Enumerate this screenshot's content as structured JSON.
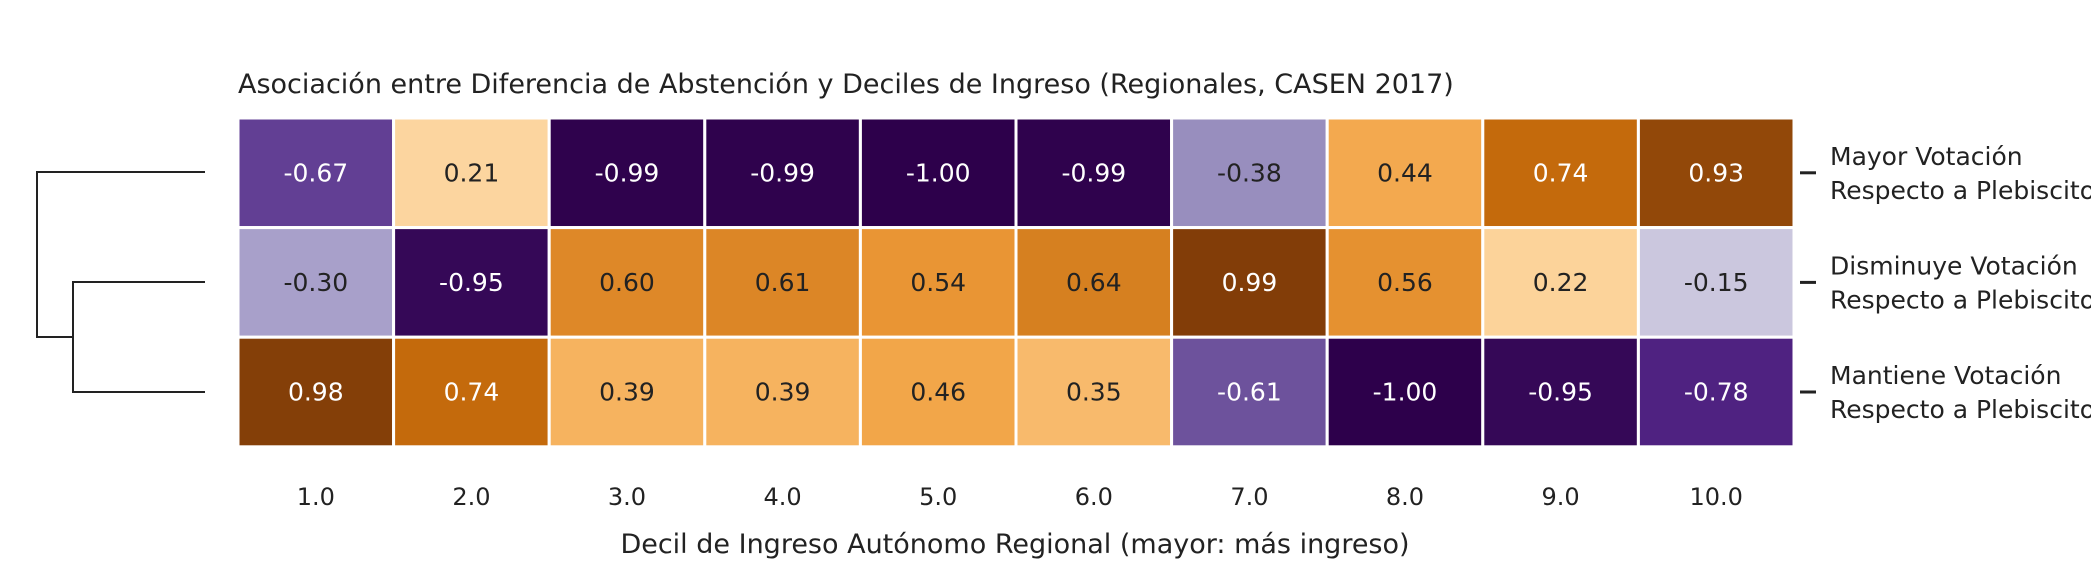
{
  "chart_data": {
    "type": "heatmap",
    "title": "Asociación entre Diferencia de Abstención y Deciles de Ingreso (Regionales, CASEN 2017)",
    "xlabel": "Decil de Ingreso Autónomo Regional (mayor: más ingreso)",
    "ylabel": "",
    "categories": [
      "1.0",
      "2.0",
      "3.0",
      "4.0",
      "5.0",
      "6.0",
      "7.0",
      "8.0",
      "9.0",
      "10.0"
    ],
    "rows": [
      {
        "label_lines": [
          "Mayor Votación",
          "Respecto a Plebiscito"
        ],
        "values": [
          -0.67,
          0.21,
          -0.99,
          -0.99,
          -1.0,
          -0.99,
          -0.38,
          0.44,
          0.74,
          0.93
        ]
      },
      {
        "label_lines": [
          "Disminuye Votación",
          "Respecto a Plebiscito"
        ],
        "values": [
          -0.3,
          -0.95,
          0.6,
          0.61,
          0.54,
          0.64,
          0.99,
          0.56,
          0.22,
          -0.15
        ]
      },
      {
        "label_lines": [
          "Mantiene Votación",
          "Respecto a Plebiscito"
        ],
        "values": [
          0.98,
          0.74,
          0.39,
          0.39,
          0.46,
          0.35,
          -0.61,
          -1.0,
          -0.95,
          -0.78
        ]
      }
    ],
    "value_range": [
      -1,
      1
    ],
    "colormap": "PuOr_r",
    "dendrogram": "rows",
    "grid": false,
    "legend": "none"
  }
}
